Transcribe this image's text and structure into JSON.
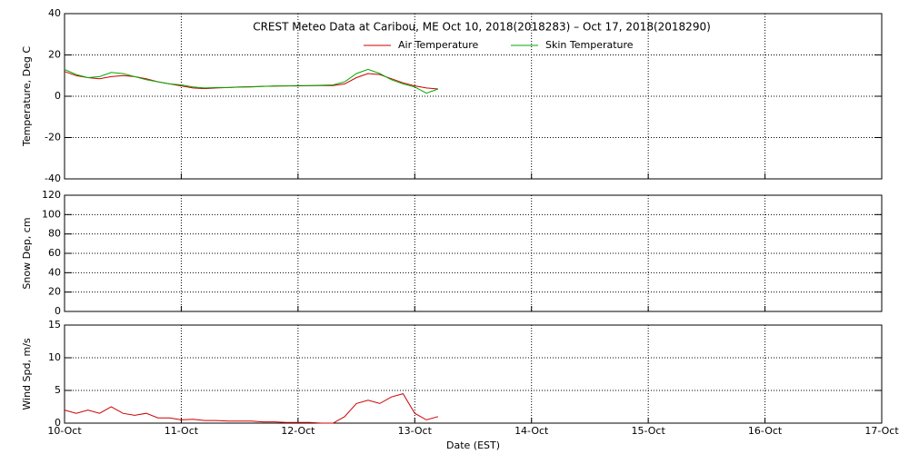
{
  "chart_data": [
    {
      "type": "line",
      "title": "CREST Meteo Data at Caribou, ME   Oct 10, 2018(2018283) – Oct 17, 2018(2018290)",
      "ylabel": "Temperature, Deg C",
      "ylim": [
        -40,
        40
      ],
      "yticks": [
        -40,
        -20,
        0,
        20,
        40
      ],
      "grid": true,
      "x": [
        0,
        0.1,
        0.2,
        0.3,
        0.4,
        0.5,
        0.6,
        0.7,
        0.8,
        0.9,
        1.0,
        1.1,
        1.2,
        1.3,
        1.4,
        1.5,
        1.6,
        1.7,
        1.8,
        1.9,
        2.0,
        2.1,
        2.2,
        2.3,
        2.4,
        2.5,
        2.6,
        2.7,
        2.8,
        2.9,
        3.0,
        3.1,
        3.2
      ],
      "series": [
        {
          "name": "Air Temperature",
          "color": "#cc0000",
          "values": [
            12,
            10,
            9,
            8.5,
            9.5,
            10,
            9.5,
            8.5,
            7,
            6,
            5,
            4,
            3.7,
            4,
            4.2,
            4.5,
            4.6,
            4.8,
            4.9,
            5,
            5,
            5.1,
            5.2,
            5.2,
            6,
            9,
            11,
            10.5,
            8.5,
            6.5,
            5,
            4,
            3.5
          ]
        },
        {
          "name": "Skin Temperature",
          "color": "#00aa00",
          "values": [
            13,
            10.5,
            9,
            9.5,
            11.5,
            11,
            9.5,
            8,
            7,
            6,
            5.5,
            4.5,
            4,
            4.2,
            4.2,
            4.4,
            4.5,
            4.8,
            5,
            5,
            5.2,
            5.2,
            5.3,
            5.5,
            7,
            11,
            13,
            11,
            8,
            6,
            4.5,
            1.5,
            3.5
          ]
        }
      ]
    },
    {
      "type": "line",
      "ylabel": "Snow Dep, cm",
      "ylim": [
        0,
        120
      ],
      "yticks": [
        0,
        20,
        40,
        60,
        80,
        100,
        120
      ],
      "grid": true
    },
    {
      "type": "line",
      "ylabel": "Wind Spd, m/s",
      "xlabel": "Date (EST)",
      "ylim": [
        0,
        15
      ],
      "yticks": [
        0,
        5,
        10,
        15
      ],
      "grid": true,
      "xlim": [
        0,
        7
      ],
      "xticks": [
        {
          "value": 0,
          "label": "10-Oct"
        },
        {
          "value": 1,
          "label": "11-Oct"
        },
        {
          "value": 2,
          "label": "12-Oct"
        },
        {
          "value": 3,
          "label": "13-Oct"
        },
        {
          "value": 4,
          "label": "14-Oct"
        },
        {
          "value": 5,
          "label": "15-Oct"
        },
        {
          "value": 6,
          "label": "16-Oct"
        },
        {
          "value": 7,
          "label": "17-Oct"
        }
      ],
      "x": [
        0,
        0.1,
        0.2,
        0.3,
        0.4,
        0.5,
        0.6,
        0.7,
        0.8,
        0.9,
        1.0,
        1.1,
        1.2,
        1.3,
        1.4,
        1.5,
        1.6,
        1.7,
        1.8,
        1.9,
        2.0,
        2.1,
        2.2,
        2.3,
        2.4,
        2.5,
        2.6,
        2.7,
        2.8,
        2.9,
        3.0,
        3.1,
        3.2
      ],
      "series": [
        {
          "name": "Wind Speed",
          "color": "#cc0000",
          "values": [
            2,
            1.5,
            2,
            1.5,
            2.5,
            1.5,
            1.2,
            1.5,
            0.8,
            0.8,
            0.5,
            0.6,
            0.4,
            0.4,
            0.3,
            0.3,
            0.3,
            0.2,
            0.2,
            0.1,
            0.1,
            0.1,
            0,
            0,
            1,
            3,
            3.5,
            3,
            4,
            4.5,
            1.5,
            0.5,
            1
          ]
        }
      ]
    }
  ]
}
